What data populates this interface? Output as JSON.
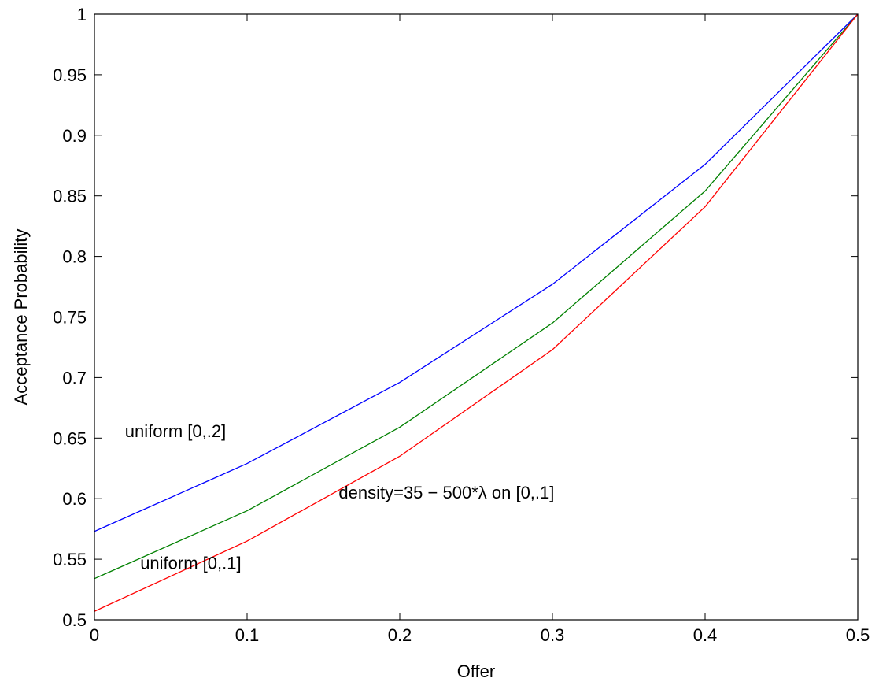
{
  "chart_data": {
    "type": "line",
    "title": "",
    "xlabel": "Offer",
    "ylabel": "Acceptance Probability",
    "xlim": [
      0,
      0.5
    ],
    "ylim": [
      0.5,
      1
    ],
    "grid": false,
    "x_ticks": [
      "0",
      "0.1",
      "0.2",
      "0.3",
      "0.4",
      "0.5"
    ],
    "y_ticks": [
      "0.5",
      "0.55",
      "0.6",
      "0.65",
      "0.7",
      "0.75",
      "0.8",
      "0.85",
      "0.9",
      "0.95",
      "1"
    ],
    "x": [
      0,
      0.1,
      0.2,
      0.3,
      0.4,
      0.5
    ],
    "series": [
      {
        "name": "uniform [0,.2]",
        "color": "#0000ff",
        "values": [
          0.573,
          0.629,
          0.696,
          0.777,
          0.876,
          1.0
        ]
      },
      {
        "name": "density=35 − 500*λ on [0,.1]",
        "color": "#008000",
        "values": [
          0.534,
          0.59,
          0.659,
          0.745,
          0.854,
          1.0
        ]
      },
      {
        "name": "uniform [0,.1]",
        "color": "#ff0000",
        "values": [
          0.507,
          0.565,
          0.635,
          0.723,
          0.841,
          1.0
        ]
      }
    ],
    "annotations": [
      {
        "text": "uniform [0,.2]",
        "x": 0.02,
        "y": 0.651
      },
      {
        "text": "density=35 − 500*λ on [0,.1]",
        "x": 0.16,
        "y": 0.6
      },
      {
        "text": "uniform [0,.1]",
        "x": 0.03,
        "y": 0.542
      }
    ]
  }
}
